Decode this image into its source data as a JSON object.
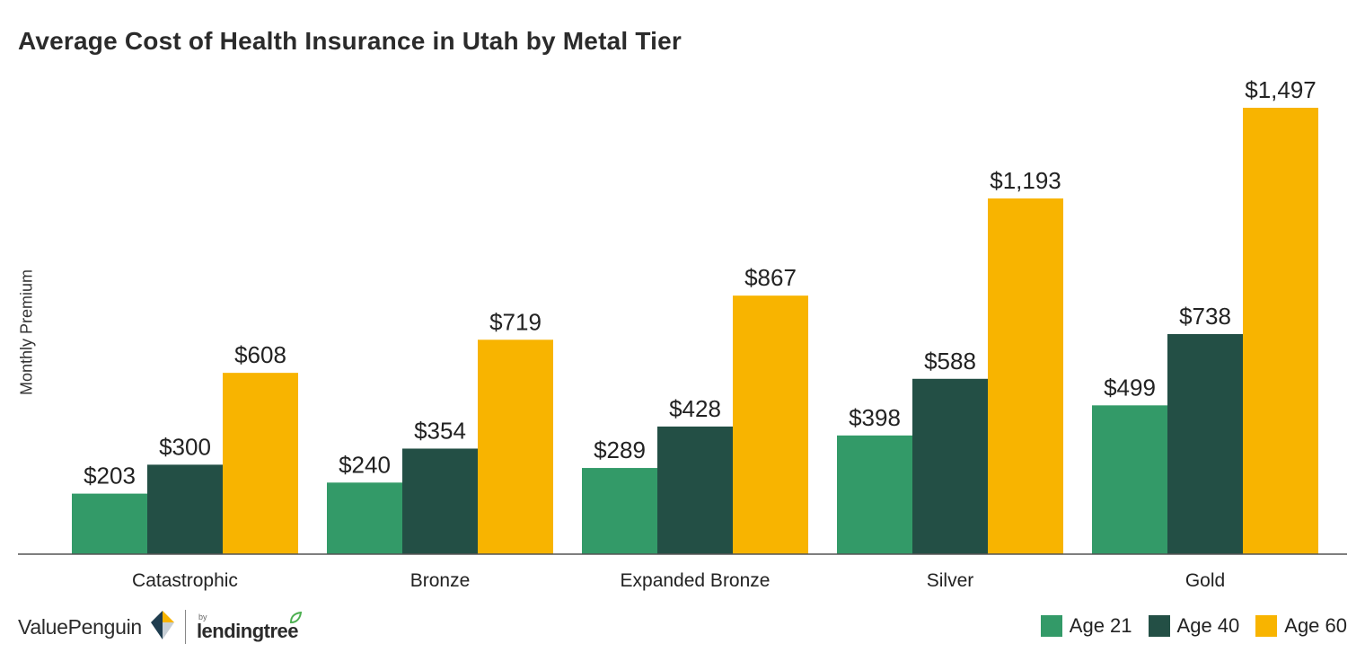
{
  "chart_data": {
    "type": "bar",
    "title": "Average Cost of Health Insurance in Utah by Metal Tier",
    "xlabel": "",
    "ylabel": "Monthly Premium",
    "categories": [
      "Catastrophic",
      "Bronze",
      "Expanded Bronze",
      "Silver",
      "Gold"
    ],
    "series": [
      {
        "name": "Age 21",
        "color": "#339a68",
        "values": [
          203,
          240,
          289,
          398,
          499
        ],
        "labels": [
          "$203",
          "$240",
          "$289",
          "$398",
          "$499"
        ]
      },
      {
        "name": "Age 40",
        "color": "#234f45",
        "values": [
          300,
          354,
          428,
          588,
          738
        ],
        "labels": [
          "$300",
          "$354",
          "$428",
          "$588",
          "$738"
        ]
      },
      {
        "name": "Age 60",
        "color": "#f8b400",
        "values": [
          608,
          719,
          867,
          1193,
          1497
        ],
        "labels": [
          "$608",
          "$719",
          "$867",
          "$1,193",
          "$1,497"
        ]
      }
    ],
    "ylim": [
      0,
      1600
    ],
    "grid": false,
    "legend_position": "bottom-right"
  },
  "branding": {
    "name": "ValuePenguin",
    "partner_prefix": "by",
    "partner_name": "lendingtree"
  }
}
